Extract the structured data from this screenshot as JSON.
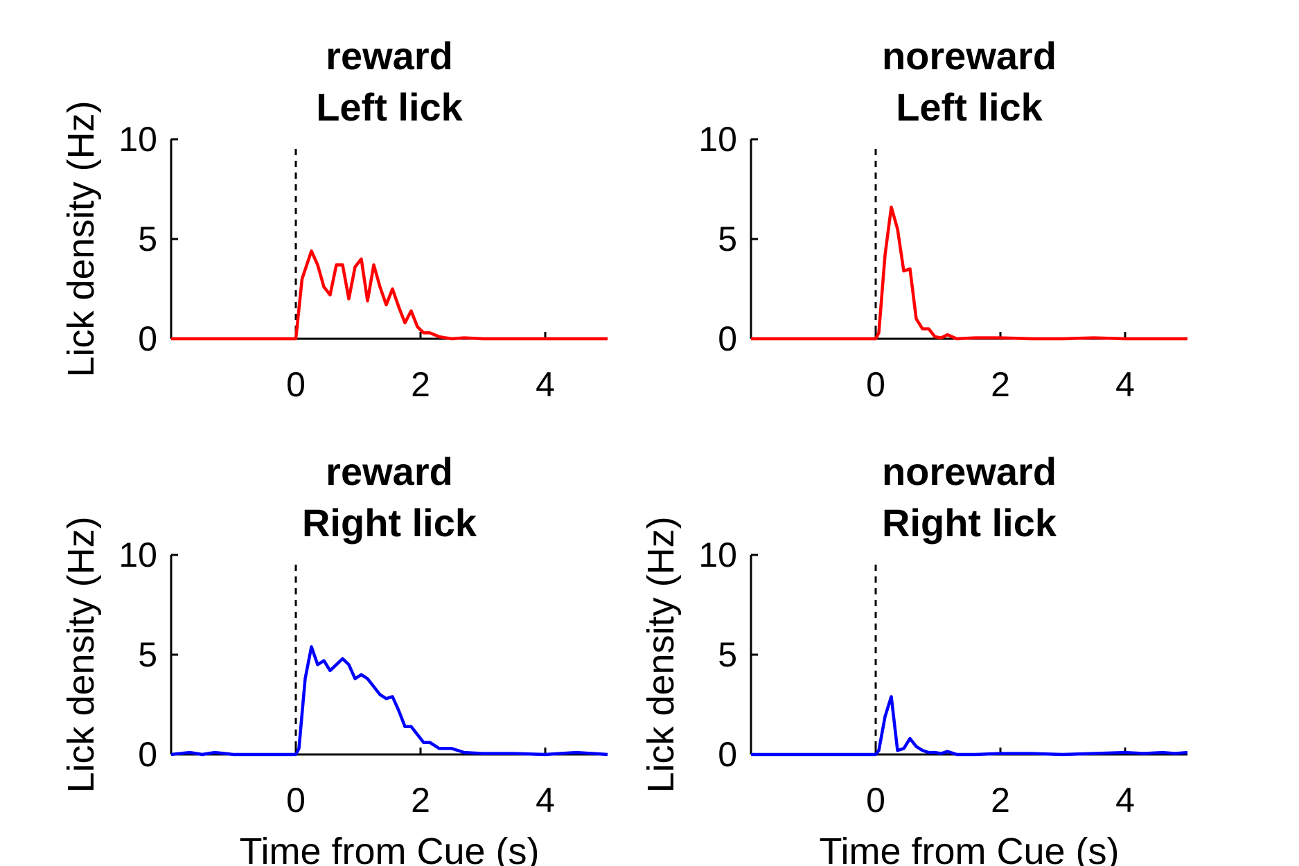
{
  "figure": {
    "background": "#ffffff"
  },
  "chart_data": [
    {
      "type": "line",
      "title_line1": "reward",
      "title_line2": "Left lick",
      "xlabel": "",
      "ylabel": "Lick density (Hz)",
      "xlim": [
        -2,
        5
      ],
      "ylim": [
        0,
        10
      ],
      "xticks": [
        0,
        2,
        4
      ],
      "yticks": [
        0,
        5,
        10
      ],
      "marker_line_x": 0,
      "color": "#ff0000",
      "x": [
        -2,
        -0.1,
        0,
        0.1,
        0.25,
        0.35,
        0.45,
        0.55,
        0.65,
        0.75,
        0.85,
        0.95,
        1.05,
        1.15,
        1.25,
        1.35,
        1.45,
        1.55,
        1.65,
        1.75,
        1.85,
        1.95,
        2.05,
        2.15,
        2.3,
        2.5,
        2.7,
        3.0,
        3.5,
        4.0,
        4.5,
        5.0
      ],
      "y": [
        0,
        0,
        0,
        3.0,
        4.4,
        3.7,
        2.6,
        2.2,
        3.7,
        3.7,
        2.0,
        3.6,
        4.0,
        1.9,
        3.7,
        2.6,
        1.7,
        2.5,
        1.6,
        0.8,
        1.4,
        0.6,
        0.3,
        0.3,
        0.1,
        0,
        0.05,
        0,
        0,
        0,
        0,
        0
      ]
    },
    {
      "type": "line",
      "title_line1": "noreward",
      "title_line2": "Left lick",
      "xlabel": "",
      "ylabel": "",
      "xlim": [
        -2,
        5
      ],
      "ylim": [
        0,
        10
      ],
      "xticks": [
        0,
        2,
        4
      ],
      "yticks": [
        0,
        5,
        10
      ],
      "marker_line_x": 0,
      "color": "#ff0000",
      "x": [
        -2,
        -0.1,
        0,
        0.05,
        0.15,
        0.25,
        0.35,
        0.45,
        0.55,
        0.65,
        0.75,
        0.85,
        0.95,
        1.05,
        1.15,
        1.3,
        1.6,
        2.0,
        2.5,
        3.0,
        3.5,
        4.0,
        4.5,
        5.0
      ],
      "y": [
        0,
        0,
        0,
        0.3,
        4.2,
        6.6,
        5.5,
        3.4,
        3.5,
        1.0,
        0.5,
        0.5,
        0.1,
        0.05,
        0.2,
        0,
        0.05,
        0.05,
        0,
        0,
        0.05,
        0,
        0,
        0
      ]
    },
    {
      "type": "line",
      "title_line1": "reward",
      "title_line2": "Right lick",
      "xlabel": "Time from Cue (s)",
      "ylabel": "Lick density (Hz)",
      "xlim": [
        -2,
        5
      ],
      "ylim": [
        0,
        10
      ],
      "xticks": [
        0,
        2,
        4
      ],
      "yticks": [
        0,
        5,
        10
      ],
      "marker_line_x": 0,
      "color": "#0000ff",
      "x": [
        -2,
        -1.7,
        -1.5,
        -1.3,
        -1.0,
        -0.5,
        0,
        0.05,
        0.15,
        0.25,
        0.35,
        0.45,
        0.55,
        0.65,
        0.75,
        0.85,
        0.95,
        1.05,
        1.15,
        1.25,
        1.35,
        1.45,
        1.55,
        1.65,
        1.75,
        1.85,
        1.95,
        2.05,
        2.15,
        2.3,
        2.5,
        2.7,
        3.0,
        3.5,
        4.0,
        4.5,
        5.0
      ],
      "y": [
        0,
        0.1,
        0,
        0.1,
        0,
        0,
        0,
        0.3,
        3.8,
        5.4,
        4.5,
        4.7,
        4.2,
        4.5,
        4.8,
        4.5,
        3.8,
        4.0,
        3.8,
        3.4,
        3.0,
        2.8,
        2.9,
        2.2,
        1.4,
        1.4,
        1.0,
        0.6,
        0.6,
        0.3,
        0.3,
        0.1,
        0.05,
        0.05,
        0,
        0.1,
        0
      ]
    },
    {
      "type": "line",
      "title_line1": "noreward",
      "title_line2": "Right lick",
      "xlabel": "Time from Cue (s)",
      "ylabel": "Lick density (Hz)",
      "xlim": [
        -2,
        5
      ],
      "ylim": [
        0,
        10
      ],
      "xticks": [
        0,
        2,
        4
      ],
      "yticks": [
        0,
        5,
        10
      ],
      "marker_line_x": 0,
      "color": "#0000ff",
      "x": [
        -2,
        -0.1,
        0,
        0.05,
        0.15,
        0.25,
        0.35,
        0.45,
        0.55,
        0.65,
        0.75,
        0.85,
        0.95,
        1.05,
        1.15,
        1.3,
        1.6,
        2.0,
        2.5,
        3.0,
        3.5,
        4.0,
        4.3,
        4.6,
        4.8,
        5.0
      ],
      "y": [
        0,
        0,
        0,
        0.2,
        1.9,
        2.9,
        0.2,
        0.3,
        0.8,
        0.4,
        0.2,
        0.1,
        0.1,
        0.05,
        0.15,
        0,
        0,
        0.05,
        0.05,
        0,
        0.05,
        0.1,
        0.05,
        0.1,
        0.05,
        0.1
      ]
    }
  ]
}
